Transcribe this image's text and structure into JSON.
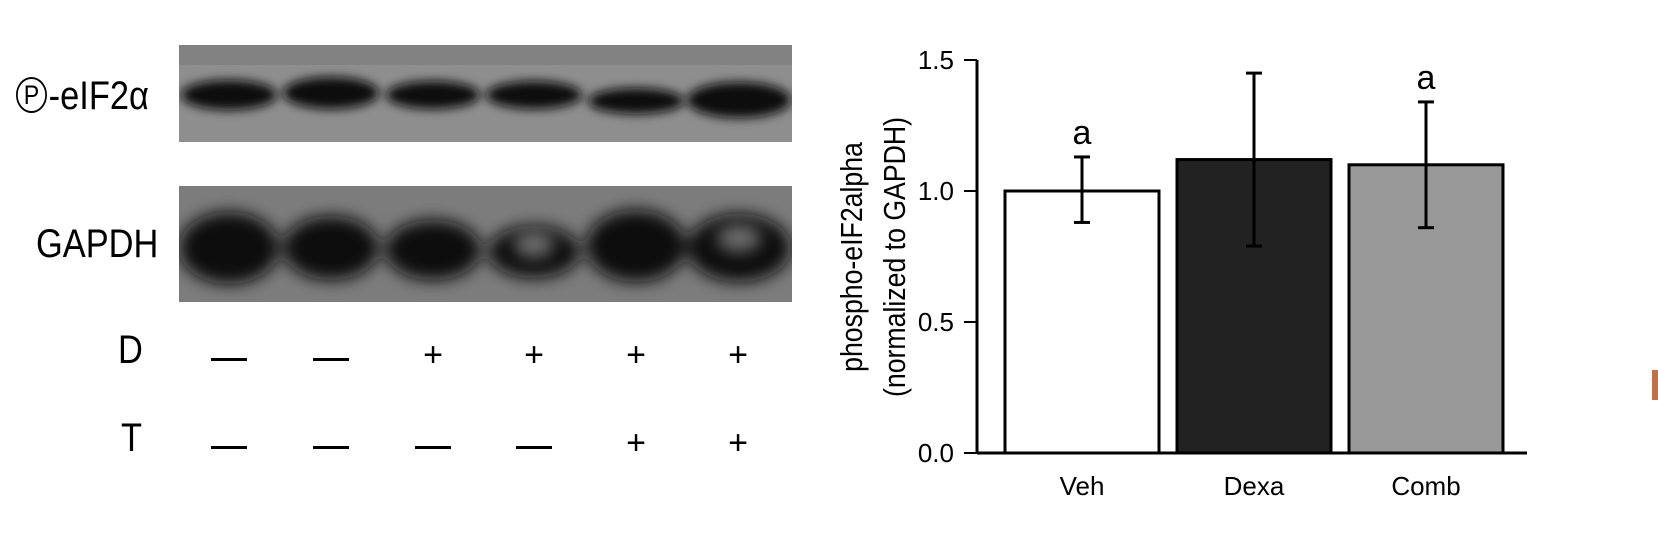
{
  "blot": {
    "rows": [
      {
        "label_symbol": "P",
        "label": "-eIF2α"
      },
      {
        "label": "GAPDH"
      }
    ],
    "treatments": [
      {
        "label": "D",
        "values": [
          "—",
          "—",
          "+",
          "+",
          "+",
          "+"
        ]
      },
      {
        "label": "T",
        "values": [
          "—",
          "—",
          "—",
          "—",
          "+",
          "+"
        ]
      }
    ]
  },
  "chart_data": {
    "type": "bar",
    "categories": [
      "Veh",
      "Dexa",
      "Comb"
    ],
    "values": [
      1.0,
      1.12,
      1.1
    ],
    "error_low": [
      0.88,
      0.79,
      0.86
    ],
    "error_high": [
      1.13,
      1.45,
      1.34
    ],
    "annotations": [
      "a",
      "",
      "a"
    ],
    "bar_colors": [
      "#ffffff",
      "#222222",
      "#999999"
    ],
    "ylabel": "phospho-eIF2alpha",
    "ylabel2": "(normalized to GAPDH)",
    "ylim": [
      0,
      1.5
    ],
    "yticks": [
      "0.0",
      "0.5",
      "1.0",
      "1.5"
    ],
    "grid": false
  }
}
